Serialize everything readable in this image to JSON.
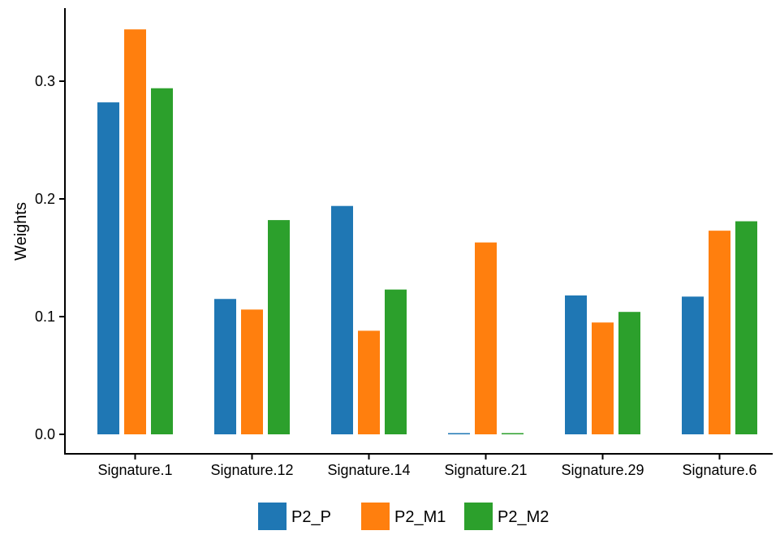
{
  "chart_data": {
    "type": "bar",
    "title": "",
    "xlabel": "",
    "ylabel": "Weights",
    "ylim": [
      0,
      0.35
    ],
    "yticks": [
      0.0,
      0.1,
      0.2,
      0.3
    ],
    "ytick_labels": [
      "0.0",
      "0.1",
      "0.2",
      "0.3"
    ],
    "grid": false,
    "legend_position": "bottom",
    "categories": [
      "Signature.1",
      "Signature.12",
      "Signature.14",
      "Signature.21",
      "Signature.29",
      "Signature.6"
    ],
    "series": [
      {
        "name": "P2_P",
        "color": "#1f77b4",
        "values": [
          0.282,
          0.115,
          0.194,
          0.001,
          0.118,
          0.117
        ]
      },
      {
        "name": "P2_M1",
        "color": "#ff7f0e",
        "values": [
          0.344,
          0.106,
          0.088,
          0.163,
          0.095,
          0.173
        ]
      },
      {
        "name": "P2_M2",
        "color": "#2ca02c",
        "values": [
          0.294,
          0.182,
          0.123,
          0.001,
          0.104,
          0.181
        ]
      }
    ]
  }
}
